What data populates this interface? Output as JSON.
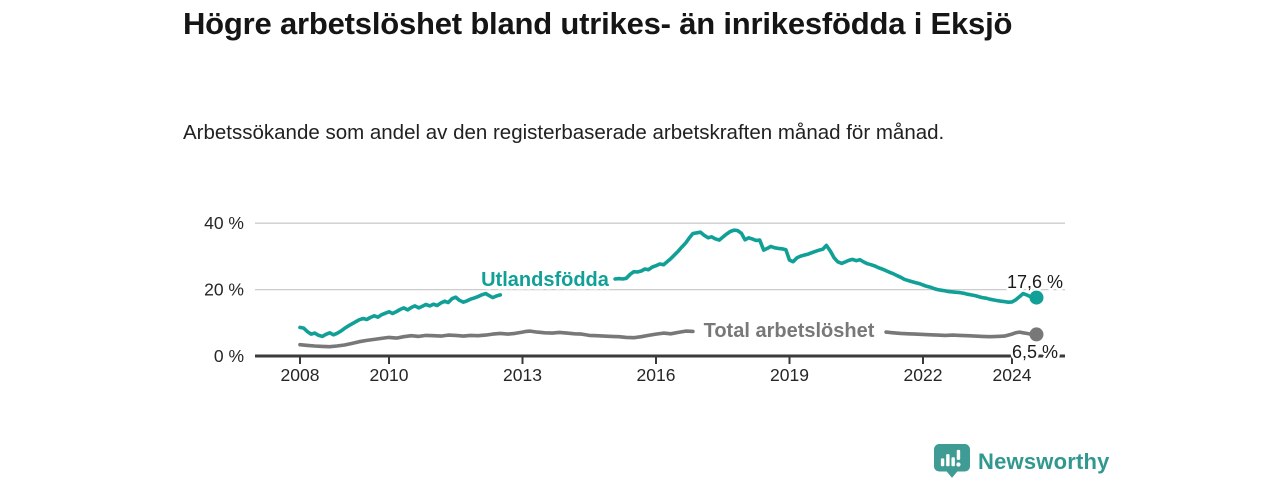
{
  "footer": {
    "brand": "Newsworthy"
  },
  "colors": {
    "teal_line": "#11a097",
    "gray_line": "#787878",
    "grid": "#cdcdcd",
    "axis": "#3a3a3a",
    "brand_teal": "#31988f"
  },
  "chart_data": {
    "type": "line",
    "title": "Högre arbetslöshet bland utrikes- än inrikesfödda i Eksjö",
    "subtitle": "Arbetssökande som andel av den registerbaserade arbetskraften månad för månad.",
    "xlabel": "",
    "ylabel": "",
    "xlim": [
      2007.0,
      2025.2
    ],
    "ylim": [
      0,
      44
    ],
    "grid": "horizontal",
    "legend_position": "inline-labels",
    "x_ticks": [
      2008,
      2010,
      2013,
      2016,
      2019,
      2022,
      2024
    ],
    "y_ticks": [
      {
        "value": 0,
        "label": "0 %"
      },
      {
        "value": 20,
        "label": "20 %"
      },
      {
        "value": 40,
        "label": "40 %"
      }
    ],
    "series": [
      {
        "id": "utlandsfodda",
        "name": "Utlandsfödda",
        "color": "#11a097",
        "end_label": "17,6 %",
        "end_value": 17.6,
        "label_gap": [
          2012.51,
          2015.07
        ],
        "points": [
          [
            2008.0,
            8.6
          ],
          [
            2008.08,
            8.4
          ],
          [
            2008.17,
            7.3
          ],
          [
            2008.25,
            6.6
          ],
          [
            2008.33,
            6.9
          ],
          [
            2008.42,
            6.2
          ],
          [
            2008.5,
            5.9
          ],
          [
            2008.58,
            6.5
          ],
          [
            2008.67,
            7.0
          ],
          [
            2008.75,
            6.4
          ],
          [
            2008.83,
            6.8
          ],
          [
            2008.92,
            7.5
          ],
          [
            2009.0,
            8.3
          ],
          [
            2009.08,
            9.0
          ],
          [
            2009.17,
            9.7
          ],
          [
            2009.25,
            10.3
          ],
          [
            2009.33,
            10.9
          ],
          [
            2009.42,
            11.3
          ],
          [
            2009.5,
            11.0
          ],
          [
            2009.58,
            11.6
          ],
          [
            2009.67,
            12.1
          ],
          [
            2009.75,
            11.7
          ],
          [
            2009.83,
            12.4
          ],
          [
            2009.92,
            12.9
          ],
          [
            2010.0,
            13.3
          ],
          [
            2010.08,
            12.8
          ],
          [
            2010.17,
            13.4
          ],
          [
            2010.25,
            14.0
          ],
          [
            2010.33,
            14.5
          ],
          [
            2010.42,
            13.9
          ],
          [
            2010.5,
            14.6
          ],
          [
            2010.58,
            15.1
          ],
          [
            2010.67,
            14.5
          ],
          [
            2010.75,
            15.0
          ],
          [
            2010.83,
            15.5
          ],
          [
            2010.92,
            15.1
          ],
          [
            2011.0,
            15.6
          ],
          [
            2011.08,
            15.2
          ],
          [
            2011.17,
            16.0
          ],
          [
            2011.25,
            16.5
          ],
          [
            2011.33,
            16.1
          ],
          [
            2011.42,
            17.3
          ],
          [
            2011.5,
            17.7
          ],
          [
            2011.58,
            16.8
          ],
          [
            2011.67,
            16.2
          ],
          [
            2011.75,
            16.6
          ],
          [
            2011.83,
            17.1
          ],
          [
            2011.92,
            17.5
          ],
          [
            2012.0,
            17.9
          ],
          [
            2012.08,
            18.4
          ],
          [
            2012.17,
            18.8
          ],
          [
            2012.25,
            18.2
          ],
          [
            2012.33,
            17.6
          ],
          [
            2012.42,
            18.1
          ],
          [
            2012.5,
            18.4
          ],
          [
            2015.08,
            23.2
          ],
          [
            2015.17,
            23.3
          ],
          [
            2015.25,
            23.2
          ],
          [
            2015.33,
            23.4
          ],
          [
            2015.42,
            24.6
          ],
          [
            2015.5,
            25.4
          ],
          [
            2015.58,
            25.3
          ],
          [
            2015.67,
            25.6
          ],
          [
            2015.75,
            26.2
          ],
          [
            2015.83,
            26.0
          ],
          [
            2015.92,
            26.8
          ],
          [
            2016.0,
            27.2
          ],
          [
            2016.08,
            27.7
          ],
          [
            2016.17,
            27.5
          ],
          [
            2016.25,
            28.4
          ],
          [
            2016.33,
            29.3
          ],
          [
            2016.42,
            30.5
          ],
          [
            2016.5,
            31.6
          ],
          [
            2016.58,
            32.8
          ],
          [
            2016.67,
            34.1
          ],
          [
            2016.75,
            35.6
          ],
          [
            2016.83,
            36.9
          ],
          [
            2016.92,
            37.1
          ],
          [
            2017.0,
            37.3
          ],
          [
            2017.08,
            36.4
          ],
          [
            2017.17,
            35.6
          ],
          [
            2017.25,
            35.9
          ],
          [
            2017.33,
            35.3
          ],
          [
            2017.42,
            34.9
          ],
          [
            2017.5,
            35.8
          ],
          [
            2017.58,
            36.7
          ],
          [
            2017.67,
            37.5
          ],
          [
            2017.75,
            37.9
          ],
          [
            2017.83,
            37.8
          ],
          [
            2017.92,
            37.0
          ],
          [
            2018.0,
            35.0
          ],
          [
            2018.08,
            35.6
          ],
          [
            2018.17,
            35.2
          ],
          [
            2018.25,
            34.8
          ],
          [
            2018.33,
            34.9
          ],
          [
            2018.42,
            31.9
          ],
          [
            2018.5,
            32.4
          ],
          [
            2018.58,
            33.0
          ],
          [
            2018.67,
            32.6
          ],
          [
            2018.75,
            32.4
          ],
          [
            2018.83,
            32.3
          ],
          [
            2018.92,
            32.0
          ],
          [
            2019.0,
            28.9
          ],
          [
            2019.08,
            28.4
          ],
          [
            2019.17,
            29.6
          ],
          [
            2019.25,
            30.1
          ],
          [
            2019.33,
            30.4
          ],
          [
            2019.42,
            30.7
          ],
          [
            2019.5,
            31.1
          ],
          [
            2019.58,
            31.5
          ],
          [
            2019.67,
            31.9
          ],
          [
            2019.75,
            32.2
          ],
          [
            2019.83,
            33.3
          ],
          [
            2019.92,
            31.6
          ],
          [
            2020.0,
            29.6
          ],
          [
            2020.08,
            28.4
          ],
          [
            2020.17,
            27.9
          ],
          [
            2020.25,
            28.3
          ],
          [
            2020.33,
            28.8
          ],
          [
            2020.42,
            29.1
          ],
          [
            2020.5,
            28.7
          ],
          [
            2020.58,
            29.0
          ],
          [
            2020.67,
            28.3
          ],
          [
            2020.75,
            27.8
          ],
          [
            2020.83,
            27.5
          ],
          [
            2020.92,
            27.1
          ],
          [
            2021.0,
            26.6
          ],
          [
            2021.08,
            26.2
          ],
          [
            2021.17,
            25.7
          ],
          [
            2021.25,
            25.2
          ],
          [
            2021.33,
            24.8
          ],
          [
            2021.42,
            24.2
          ],
          [
            2021.5,
            23.7
          ],
          [
            2021.58,
            23.1
          ],
          [
            2021.67,
            22.7
          ],
          [
            2021.75,
            22.4
          ],
          [
            2021.83,
            22.1
          ],
          [
            2021.92,
            21.8
          ],
          [
            2022.0,
            21.4
          ],
          [
            2022.08,
            21.0
          ],
          [
            2022.17,
            20.7
          ],
          [
            2022.25,
            20.3
          ],
          [
            2022.33,
            20.0
          ],
          [
            2022.42,
            19.8
          ],
          [
            2022.5,
            19.6
          ],
          [
            2022.58,
            19.4
          ],
          [
            2022.67,
            19.3
          ],
          [
            2022.75,
            19.2
          ],
          [
            2022.83,
            19.1
          ],
          [
            2022.92,
            18.9
          ],
          [
            2023.0,
            18.6
          ],
          [
            2023.08,
            18.4
          ],
          [
            2023.17,
            18.2
          ],
          [
            2023.25,
            17.9
          ],
          [
            2023.33,
            17.6
          ],
          [
            2023.42,
            17.4
          ],
          [
            2023.5,
            17.1
          ],
          [
            2023.58,
            16.9
          ],
          [
            2023.67,
            16.7
          ],
          [
            2023.75,
            16.5
          ],
          [
            2023.83,
            16.4
          ],
          [
            2023.92,
            16.2
          ],
          [
            2024.0,
            16.3
          ],
          [
            2024.08,
            16.9
          ],
          [
            2024.17,
            17.9
          ],
          [
            2024.25,
            18.8
          ],
          [
            2024.33,
            18.4
          ],
          [
            2024.42,
            17.8
          ],
          [
            2024.5,
            17.3
          ],
          [
            2024.55,
            17.6
          ]
        ]
      },
      {
        "id": "total",
        "name": "Total arbetslöshet",
        "color": "#787878",
        "end_label": "6,5 %",
        "end_value": 6.5,
        "label_gap": [
          2016.85,
          2021.15
        ],
        "points": [
          [
            2008.0,
            3.4
          ],
          [
            2008.17,
            3.2
          ],
          [
            2008.33,
            3.0
          ],
          [
            2008.5,
            2.9
          ],
          [
            2008.67,
            2.8
          ],
          [
            2008.83,
            3.0
          ],
          [
            2009.0,
            3.3
          ],
          [
            2009.17,
            3.8
          ],
          [
            2009.33,
            4.3
          ],
          [
            2009.5,
            4.7
          ],
          [
            2009.67,
            5.0
          ],
          [
            2009.83,
            5.3
          ],
          [
            2010.0,
            5.6
          ],
          [
            2010.17,
            5.4
          ],
          [
            2010.33,
            5.8
          ],
          [
            2010.5,
            6.1
          ],
          [
            2010.67,
            5.9
          ],
          [
            2010.83,
            6.2
          ],
          [
            2011.0,
            6.1
          ],
          [
            2011.17,
            6.0
          ],
          [
            2011.33,
            6.3
          ],
          [
            2011.5,
            6.2
          ],
          [
            2011.67,
            6.0
          ],
          [
            2011.83,
            6.2
          ],
          [
            2012.0,
            6.1
          ],
          [
            2012.17,
            6.3
          ],
          [
            2012.33,
            6.6
          ],
          [
            2012.5,
            6.8
          ],
          [
            2012.67,
            6.6
          ],
          [
            2012.83,
            6.8
          ],
          [
            2013.0,
            7.2
          ],
          [
            2013.08,
            7.4
          ],
          [
            2013.17,
            7.5
          ],
          [
            2013.33,
            7.2
          ],
          [
            2013.5,
            7.0
          ],
          [
            2013.67,
            6.9
          ],
          [
            2013.83,
            7.1
          ],
          [
            2014.0,
            6.9
          ],
          [
            2014.17,
            6.7
          ],
          [
            2014.33,
            6.6
          ],
          [
            2014.5,
            6.2
          ],
          [
            2014.67,
            6.1
          ],
          [
            2014.83,
            6.0
          ],
          [
            2015.0,
            5.9
          ],
          [
            2015.17,
            5.8
          ],
          [
            2015.33,
            5.6
          ],
          [
            2015.5,
            5.5
          ],
          [
            2015.67,
            5.8
          ],
          [
            2015.83,
            6.2
          ],
          [
            2016.0,
            6.6
          ],
          [
            2016.17,
            6.9
          ],
          [
            2016.33,
            6.7
          ],
          [
            2016.5,
            7.1
          ],
          [
            2016.67,
            7.5
          ],
          [
            2016.83,
            7.4
          ],
          [
            2021.17,
            7.2
          ],
          [
            2021.33,
            7.0
          ],
          [
            2021.5,
            6.8
          ],
          [
            2021.67,
            6.7
          ],
          [
            2021.83,
            6.6
          ],
          [
            2022.0,
            6.5
          ],
          [
            2022.17,
            6.4
          ],
          [
            2022.33,
            6.3
          ],
          [
            2022.5,
            6.2
          ],
          [
            2022.67,
            6.3
          ],
          [
            2022.83,
            6.2
          ],
          [
            2023.0,
            6.1
          ],
          [
            2023.17,
            6.0
          ],
          [
            2023.33,
            5.9
          ],
          [
            2023.5,
            5.8
          ],
          [
            2023.67,
            5.9
          ],
          [
            2023.83,
            6.0
          ],
          [
            2024.0,
            6.6
          ],
          [
            2024.08,
            7.0
          ],
          [
            2024.17,
            7.2
          ],
          [
            2024.25,
            7.0
          ],
          [
            2024.33,
            6.8
          ],
          [
            2024.42,
            6.6
          ],
          [
            2024.5,
            6.5
          ],
          [
            2024.55,
            6.5
          ]
        ]
      }
    ]
  }
}
